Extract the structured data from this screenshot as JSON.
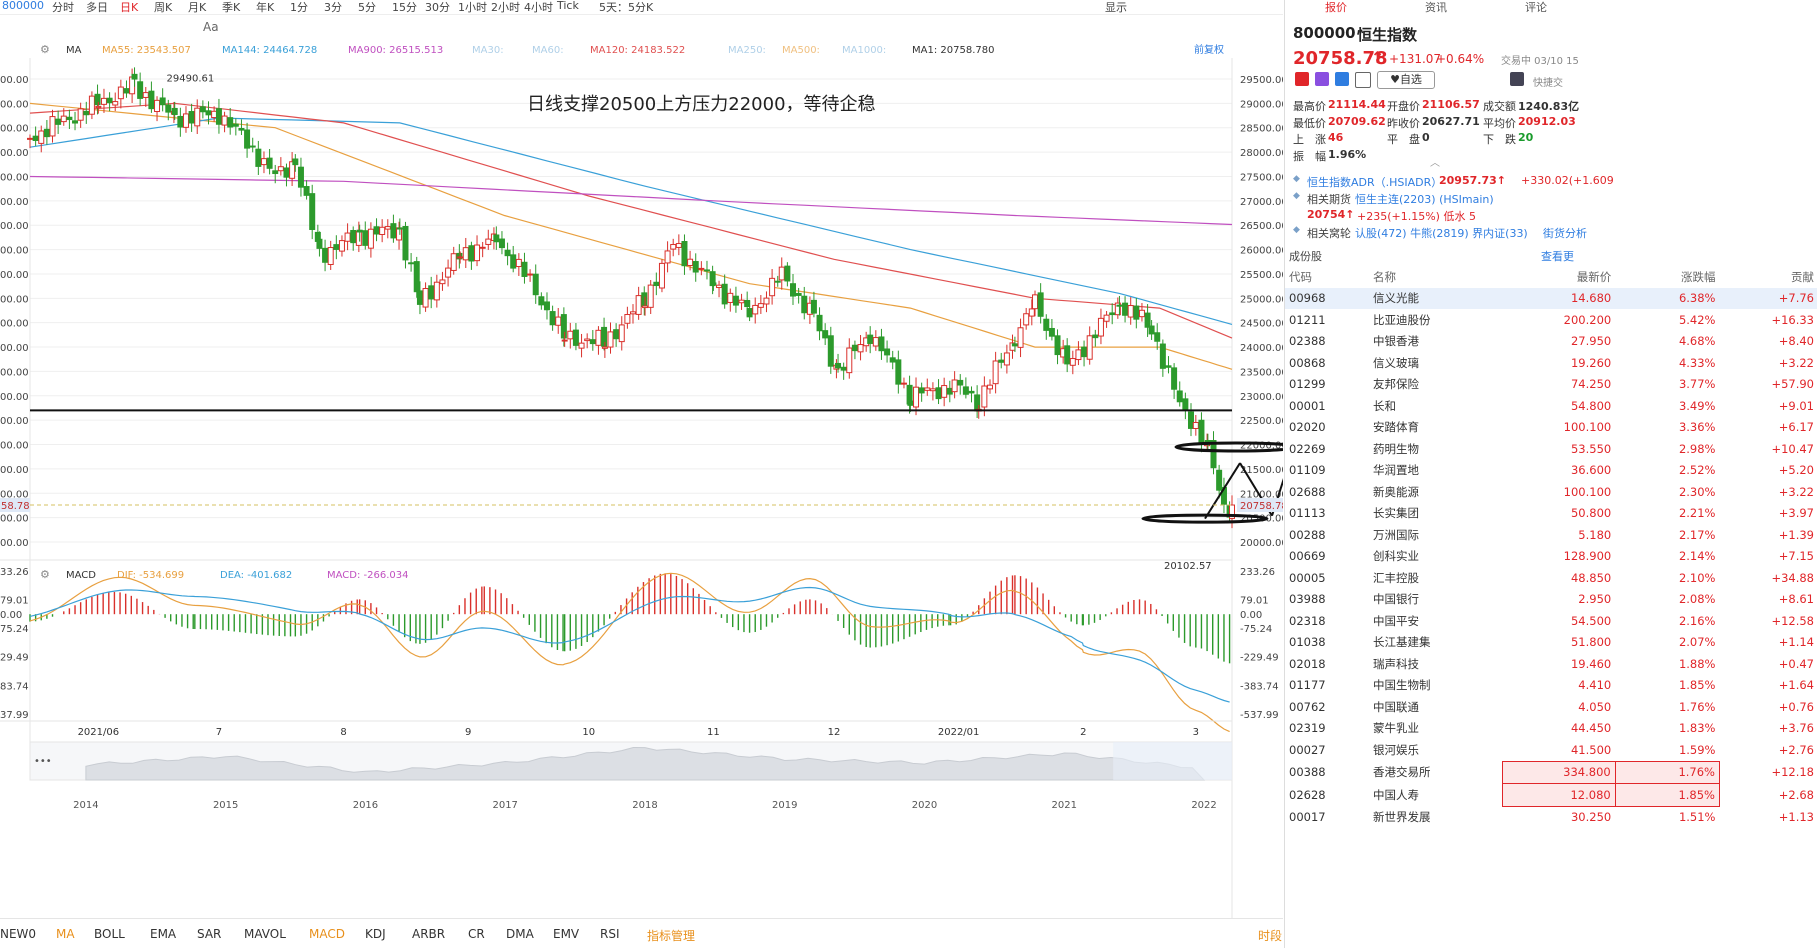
{
  "topbar": {
    "symbol": "800000",
    "periods": [
      "分时",
      "多日",
      "日K",
      "周K",
      "月K",
      "季K",
      "年K",
      "1分",
      "3分",
      "5分",
      "15分",
      "30分",
      "1小时",
      "2小时",
      "4小时",
      "Tick",
      "5天：5分K"
    ],
    "active_period": "日K",
    "display_label": "显示"
  },
  "toolbar": {
    "text_tool": "Aa"
  },
  "ma_legend": {
    "type": "MA",
    "items": [
      {
        "label": "MA55: 23543.507",
        "color": "#e8a040"
      },
      {
        "label": "MA144: 24464.728",
        "color": "#3aa0d8"
      },
      {
        "label": "MA900: 26515.513",
        "color": "#c050c0"
      },
      {
        "label": "MA30:",
        "color": "#b0d0e8"
      },
      {
        "label": "MA60:",
        "color": "#b0d0e8"
      },
      {
        "label": "MA120: 24183.522",
        "color": "#e05050"
      },
      {
        "label": "MA250:",
        "color": "#b0d0e8"
      },
      {
        "label": "MA500:",
        "color": "#f0c080"
      },
      {
        "label": "MA1000:",
        "color": "#b0d0e8"
      },
      {
        "label": "MA1: 20758.780",
        "color": "#333333"
      }
    ],
    "adjust": "前复权"
  },
  "macd_legend": {
    "type": "MACD",
    "dif": "DIF: -534.699",
    "dea": "DEA: -401.682",
    "macd": "MACD: -266.034"
  },
  "annotation": "日线支撑20500上方压力22000，等待企稳",
  "high_label": "29490.61",
  "low_label": "20102.57",
  "current_price_tag": "20758.78",
  "current_price_tag_left": "58.78",
  "price_axis": [
    "29500.00",
    "29000.00",
    "28500.00",
    "28000.00",
    "27500.00",
    "27000.00",
    "26500.00",
    "26000.00",
    "25500.00",
    "25000.00",
    "24500.00",
    "24000.00",
    "23500.00",
    "23000.00",
    "22500.00",
    "22000.00",
    "21500.00",
    "21000.00",
    "20500.00",
    "20000.00"
  ],
  "left_axis": [
    "00.00",
    "00.00",
    "00.00",
    "00.00",
    "00.00",
    "00.00",
    "00.00",
    "00.00",
    "00.00",
    "00.00",
    "00.00",
    "00.00",
    "00.00",
    "00.00",
    "00.00",
    "00.00",
    "00.00",
    "00.00",
    "00.00",
    "00.00"
  ],
  "macd_axis": [
    "233.26",
    "79.01",
    "0.00",
    "-75.24",
    "-229.49",
    "-383.74",
    "-537.99"
  ],
  "macd_left_axis": [
    "33.26",
    "79.01",
    "0.00",
    "75.24",
    "29.49",
    "83.74",
    "37.99"
  ],
  "x_labels": [
    "2021/06",
    "7",
    "8",
    "9",
    "10",
    "11",
    "12",
    "2022/01",
    "2",
    "3"
  ],
  "overview_years": [
    "2014",
    "2015",
    "2016",
    "2017",
    "2018",
    "2019",
    "2020",
    "2021",
    "2022"
  ],
  "indicators": [
    "NEW0",
    "MA",
    "BOLL",
    "EMA",
    "SAR",
    "MAVOL",
    "MACD",
    "KDJ",
    "ARBR",
    "CR",
    "DMA",
    "EMV",
    "RSI",
    "指标管理"
  ],
  "active_indicators": [
    "MA",
    "MACD"
  ],
  "indicator_right": "时段",
  "right_panel": {
    "tabs": [
      "报价",
      "资讯",
      "评论"
    ],
    "code": "800000",
    "name": "恒生指数",
    "price": "20758.78",
    "arrow": "↑",
    "change": "+131.07",
    "change_pct": "+0.64%",
    "trade_time": "交易中 03/10 15",
    "watch_label": "自选",
    "quick_label": "快捷交",
    "stats": [
      {
        "label": "最高价",
        "value": "21114.44",
        "cls": "red"
      },
      {
        "label": "开盘价",
        "value": "21106.57",
        "cls": "red"
      },
      {
        "label": "成交额",
        "value": "1240.83亿",
        "cls": ""
      },
      {
        "label": "最低价",
        "value": "20709.62",
        "cls": "red"
      },
      {
        "label": "昨收价",
        "value": "20627.71",
        "cls": ""
      },
      {
        "label": "平均价",
        "value": "20912.03",
        "cls": "red"
      },
      {
        "label": "上　涨",
        "value": "46",
        "cls": "red"
      },
      {
        "label": "平　盘",
        "value": "0",
        "cls": ""
      },
      {
        "label": "下　跌",
        "value": "20",
        "cls": "green"
      },
      {
        "label": "振　幅",
        "value": "1.96%",
        "cls": ""
      }
    ],
    "related": [
      {
        "label": "恒生指数ADR（.HSIADR）",
        "value": "20957.73↑",
        "extra": "+330.02(+1.609"
      },
      {
        "label": "相关期货",
        "value": "恒生主连(2203) (HSImain)",
        "extra": ""
      },
      {
        "label": "",
        "value": "20754↑",
        "extra": "+235(+1.15%)  低水  5"
      },
      {
        "label": "相关窝轮",
        "value": "认股(472)  牛熊(2819)  界内证(33)",
        "extra": "街货分析"
      }
    ],
    "constituents_title": "成份股",
    "view_more": "查看更",
    "table_headers": [
      "代码",
      "名称",
      "最新价",
      "涨跌幅",
      "贡献"
    ],
    "rows": [
      [
        "00968",
        "信义光能",
        "14.680",
        "6.38%",
        "+7.76"
      ],
      [
        "01211",
        "比亚迪股份",
        "200.200",
        "5.42%",
        "+16.33"
      ],
      [
        "02388",
        "中银香港",
        "27.950",
        "4.68%",
        "+8.40"
      ],
      [
        "00868",
        "信义玻璃",
        "19.260",
        "4.33%",
        "+3.22"
      ],
      [
        "01299",
        "友邦保险",
        "74.250",
        "3.77%",
        "+57.90"
      ],
      [
        "00001",
        "长和",
        "54.800",
        "3.49%",
        "+9.01"
      ],
      [
        "02020",
        "安踏体育",
        "100.100",
        "3.36%",
        "+6.17"
      ],
      [
        "02269",
        "药明生物",
        "53.550",
        "2.98%",
        "+10.47"
      ],
      [
        "01109",
        "华润置地",
        "36.600",
        "2.52%",
        "+5.20"
      ],
      [
        "02688",
        "新奥能源",
        "100.100",
        "2.30%",
        "+3.22"
      ],
      [
        "01113",
        "长实集团",
        "50.800",
        "2.21%",
        "+3.97"
      ],
      [
        "00288",
        "万洲国际",
        "5.180",
        "2.17%",
        "+1.39"
      ],
      [
        "00669",
        "创科实业",
        "128.900",
        "2.14%",
        "+7.15"
      ],
      [
        "00005",
        "汇丰控股",
        "48.850",
        "2.10%",
        "+34.88"
      ],
      [
        "03988",
        "中国银行",
        "2.950",
        "2.08%",
        "+8.61"
      ],
      [
        "02318",
        "中国平安",
        "54.500",
        "2.16%",
        "+12.58"
      ],
      [
        "01038",
        "长江基建集",
        "51.800",
        "2.07%",
        "+1.14"
      ],
      [
        "02018",
        "瑞声科技",
        "19.460",
        "1.88%",
        "+0.47"
      ],
      [
        "01177",
        "中国生物制",
        "4.410",
        "1.85%",
        "+1.64"
      ],
      [
        "00762",
        "中国联通",
        "4.050",
        "1.76%",
        "+0.76"
      ],
      [
        "02319",
        "蒙牛乳业",
        "44.450",
        "1.83%",
        "+3.76"
      ],
      [
        "00027",
        "银河娱乐",
        "41.500",
        "1.59%",
        "+2.76"
      ],
      [
        "00388",
        "香港交易所",
        "334.800",
        "1.76%",
        "+12.18"
      ],
      [
        "02628",
        "中国人寿",
        "12.080",
        "1.85%",
        "+2.68"
      ],
      [
        "00017",
        "新世界发展",
        "30.250",
        "1.51%",
        "+1.13"
      ]
    ]
  },
  "chart_data": {
    "type": "candlestick",
    "title": "",
    "subtitle": "",
    "ylim": [
      20000,
      29700
    ],
    "x_range": [
      "2021-05-15",
      "2022-03-10"
    ],
    "months": [
      "2021/06",
      "7",
      "8",
      "9",
      "10",
      "11",
      "12",
      "2022/01",
      "2",
      "3"
    ],
    "close_anchors": [
      {
        "date": "2021-05-15",
        "close": 28300
      },
      {
        "date": "2021-06-01",
        "close": 29000
      },
      {
        "date": "2021-06-10",
        "close": 29350
      },
      {
        "date": "2021-06-20",
        "close": 28700
      },
      {
        "date": "2021-07-01",
        "close": 28800
      },
      {
        "date": "2021-07-08",
        "close": 28200
      },
      {
        "date": "2021-07-15",
        "close": 27500
      },
      {
        "date": "2021-07-20",
        "close": 27800
      },
      {
        "date": "2021-07-26",
        "close": 25900
      },
      {
        "date": "2021-08-05",
        "close": 26300
      },
      {
        "date": "2021-08-15",
        "close": 26400
      },
      {
        "date": "2021-08-20",
        "close": 24900
      },
      {
        "date": "2021-08-30",
        "close": 25900
      },
      {
        "date": "2021-09-08",
        "close": 26200
      },
      {
        "date": "2021-09-15",
        "close": 25500
      },
      {
        "date": "2021-09-25",
        "close": 24200
      },
      {
        "date": "2021-10-05",
        "close": 24100
      },
      {
        "date": "2021-10-15",
        "close": 25000
      },
      {
        "date": "2021-10-22",
        "close": 26100
      },
      {
        "date": "2021-11-01",
        "close": 25300
      },
      {
        "date": "2021-11-10",
        "close": 24700
      },
      {
        "date": "2021-11-18",
        "close": 25500
      },
      {
        "date": "2021-11-26",
        "close": 24600
      },
      {
        "date": "2021-12-02",
        "close": 23500
      },
      {
        "date": "2021-12-10",
        "close": 24300
      },
      {
        "date": "2021-12-20",
        "close": 23000
      },
      {
        "date": "2021-12-31",
        "close": 23200
      },
      {
        "date": "2022-01-06",
        "close": 22900
      },
      {
        "date": "2022-01-15",
        "close": 24200
      },
      {
        "date": "2022-01-20",
        "close": 24900
      },
      {
        "date": "2022-01-28",
        "close": 23600
      },
      {
        "date": "2022-02-10",
        "close": 24900
      },
      {
        "date": "2022-02-18",
        "close": 24400
      },
      {
        "date": "2022-02-25",
        "close": 22800
      },
      {
        "date": "2022-03-01",
        "close": 22400
      },
      {
        "date": "2022-03-04",
        "close": 21900
      },
      {
        "date": "2022-03-08",
        "close": 20700
      },
      {
        "date": "2022-03-10",
        "close": 20758.78
      }
    ],
    "moving_averages": [
      {
        "name": "MA55",
        "color": "#e8a040",
        "points": [
          {
            "date": "2021-05-15",
            "value": 29000
          },
          {
            "date": "2021-07-15",
            "value": 28500
          },
          {
            "date": "2021-09-10",
            "value": 26700
          },
          {
            "date": "2021-11-10",
            "value": 25300
          },
          {
            "date": "2021-12-20",
            "value": 24800
          },
          {
            "date": "2022-01-20",
            "value": 24000
          },
          {
            "date": "2022-02-20",
            "value": 24000
          },
          {
            "date": "2022-03-10",
            "value": 23543.507
          }
        ]
      },
      {
        "name": "MA144",
        "color": "#3aa0d8",
        "points": [
          {
            "date": "2021-05-15",
            "value": 28100
          },
          {
            "date": "2021-07-01",
            "value": 28700
          },
          {
            "date": "2021-08-15",
            "value": 28600
          },
          {
            "date": "2021-10-15",
            "value": 27300
          },
          {
            "date": "2021-12-20",
            "value": 26000
          },
          {
            "date": "2022-02-10",
            "value": 25100
          },
          {
            "date": "2022-03-10",
            "value": 24464.728
          }
        ]
      },
      {
        "name": "MA120",
        "color": "#e05050",
        "points": [
          {
            "date": "2021-05-15",
            "value": 28800
          },
          {
            "date": "2021-06-20",
            "value": 29000
          },
          {
            "date": "2021-08-01",
            "value": 28600
          },
          {
            "date": "2021-10-01",
            "value": 27100
          },
          {
            "date": "2021-12-01",
            "value": 25800
          },
          {
            "date": "2022-01-20",
            "value": 25000
          },
          {
            "date": "2022-02-20",
            "value": 24800
          },
          {
            "date": "2022-03-10",
            "value": 24183.522
          }
        ]
      },
      {
        "name": "MA900",
        "color": "#c050c0",
        "points": [
          {
            "date": "2021-05-15",
            "value": 27500
          },
          {
            "date": "2021-08-01",
            "value": 27400
          },
          {
            "date": "2021-11-01",
            "value": 27000
          },
          {
            "date": "2022-01-15",
            "value": 26700
          },
          {
            "date": "2022-03-10",
            "value": 26515.513
          }
        ]
      }
    ],
    "high": {
      "date": "2021-06-10",
      "value": 29490.61
    },
    "low": {
      "date": "2022-03-08",
      "value": 20102.57
    },
    "support_line": 22700,
    "macd": {
      "ylim": [
        -560,
        260
      ],
      "dif": -534.699,
      "dea": -401.682,
      "macd": -266.034,
      "hist_anchors": [
        {
          "date": "2021-05-15",
          "value": -40
        },
        {
          "date": "2021-06-05",
          "value": 120
        },
        {
          "date": "2021-06-25",
          "value": -80
        },
        {
          "date": "2021-07-20",
          "value": -120
        },
        {
          "date": "2021-08-05",
          "value": 80
        },
        {
          "date": "2021-08-20",
          "value": -160
        },
        {
          "date": "2021-09-05",
          "value": 150
        },
        {
          "date": "2021-09-25",
          "value": -200
        },
        {
          "date": "2021-10-20",
          "value": 220
        },
        {
          "date": "2021-11-10",
          "value": -100
        },
        {
          "date": "2021-11-25",
          "value": 80
        },
        {
          "date": "2021-12-10",
          "value": -180
        },
        {
          "date": "2021-12-30",
          "value": -60
        },
        {
          "date": "2022-01-15",
          "value": 210
        },
        {
          "date": "2022-02-01",
          "value": -60
        },
        {
          "date": "2022-02-15",
          "value": 80
        },
        {
          "date": "2022-03-01",
          "value": -180
        },
        {
          "date": "2022-03-10",
          "value": -266
        }
      ]
    },
    "overview": {
      "years": [
        "2014",
        "2015",
        "2016",
        "2017",
        "2018",
        "2019",
        "2020",
        "2021",
        "2022"
      ],
      "anchors": [
        {
          "year": 2014,
          "value": 23000
        },
        {
          "year": 2015,
          "value": 27500
        },
        {
          "year": 2016,
          "value": 19000
        },
        {
          "year": 2017,
          "value": 24000
        },
        {
          "year": 2018,
          "value": 32000
        },
        {
          "year": 2019,
          "value": 26000
        },
        {
          "year": 2020,
          "value": 24000
        },
        {
          "year": 2021,
          "value": 29000
        },
        {
          "year": 2022,
          "value": 21000
        }
      ]
    }
  }
}
